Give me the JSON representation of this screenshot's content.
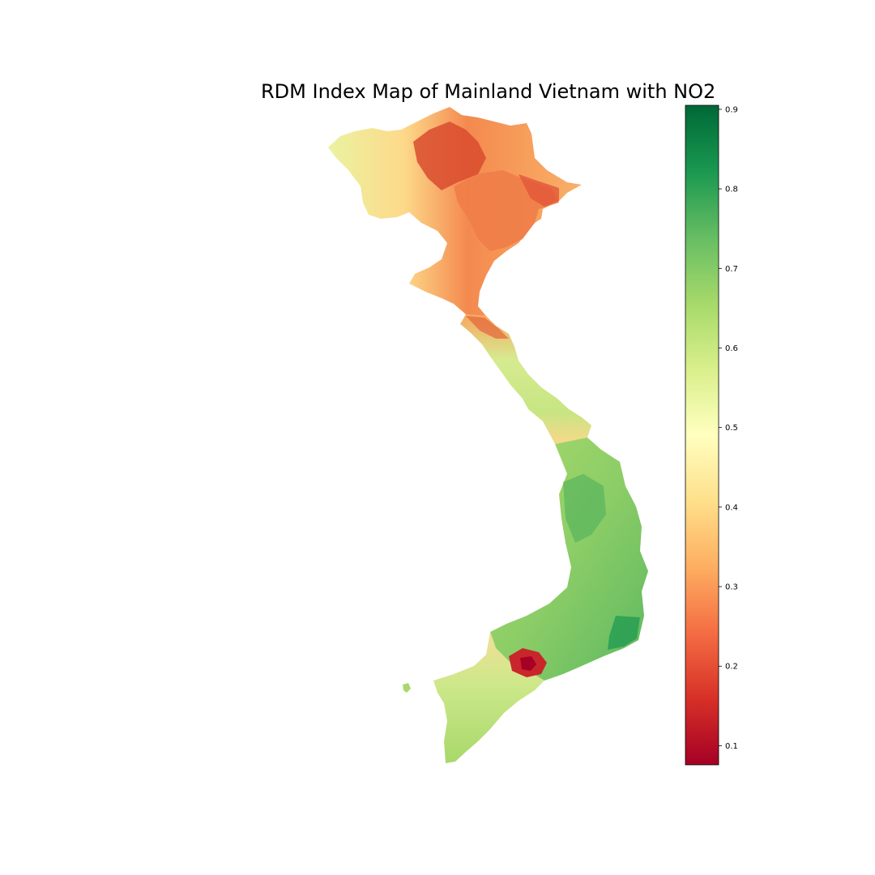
{
  "title": "RDM Index Map of Mainland Vietnam with NO2",
  "colormap": "RdYlGn",
  "colormap_stops": [
    "#a50026",
    "#d73027",
    "#f46d43",
    "#fdae61",
    "#fee08b",
    "#ffffbf",
    "#d9ef8b",
    "#a6d96a",
    "#66bd63",
    "#1a9850",
    "#006837"
  ],
  "colorbar": {
    "min": 0.076,
    "max": 0.905,
    "ticks": [
      "0.1",
      "0.2",
      "0.3",
      "0.4",
      "0.5",
      "0.6",
      "0.7",
      "0.8",
      "0.9"
    ]
  }
}
